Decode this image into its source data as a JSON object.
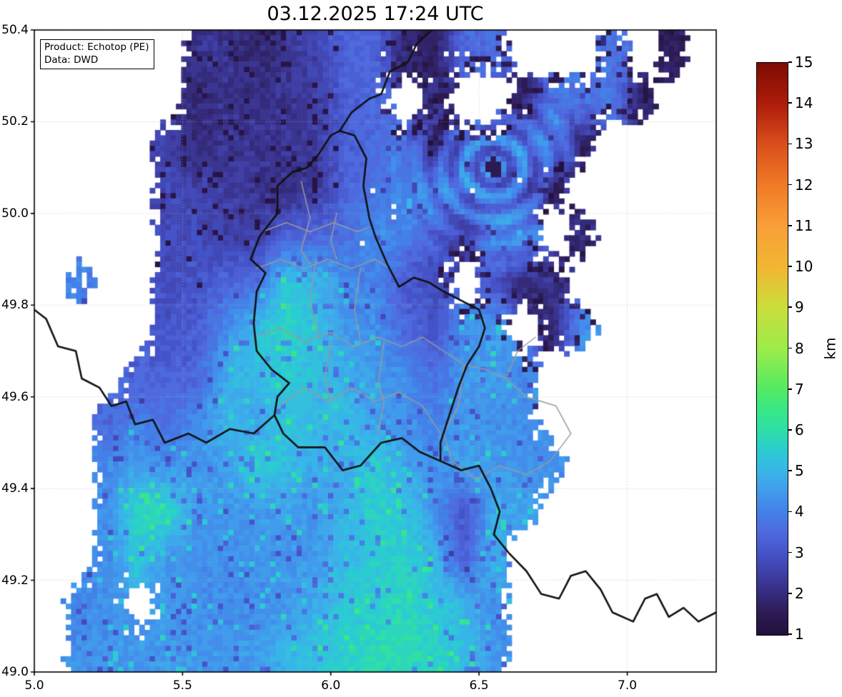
{
  "title": "03.12.2025 17:24 UTC",
  "annotation": {
    "line1": "Product: Echotop (PE)",
    "line2": "Data: DWD"
  },
  "axes": {
    "x_ticks": [
      {
        "v": 5.0,
        "label": "5.0"
      },
      {
        "v": 5.5,
        "label": "5.5"
      },
      {
        "v": 6.0,
        "label": "6.0"
      },
      {
        "v": 6.5,
        "label": "6.5"
      },
      {
        "v": 7.0,
        "label": "7.0"
      }
    ],
    "y_ticks": [
      {
        "v": 49.0,
        "label": "49.0"
      },
      {
        "v": 49.2,
        "label": "49.2"
      },
      {
        "v": 49.4,
        "label": "49.4"
      },
      {
        "v": 49.6,
        "label": "49.6"
      },
      {
        "v": 49.8,
        "label": "49.8"
      },
      {
        "v": 50.0,
        "label": "50.0"
      },
      {
        "v": 50.2,
        "label": "50.2"
      },
      {
        "v": 50.4,
        "label": "50.4"
      }
    ],
    "x_range": [
      5.0,
      7.3
    ],
    "y_range": [
      49.0,
      50.4
    ]
  },
  "gridlines": {
    "x": [
      5.0,
      5.5,
      6.0,
      6.5,
      7.0
    ],
    "y": [
      49.0,
      49.2,
      49.4,
      49.6,
      49.8,
      50.0,
      50.2,
      50.4
    ],
    "color": "#c3c3c3"
  },
  "colorbar": {
    "label": "km",
    "min": 1,
    "max": 15,
    "ticks": [
      {
        "v": 1,
        "label": "1"
      },
      {
        "v": 2,
        "label": "2"
      },
      {
        "v": 3,
        "label": "3"
      },
      {
        "v": 4,
        "label": "4"
      },
      {
        "v": 5,
        "label": "5"
      },
      {
        "v": 6,
        "label": "6"
      },
      {
        "v": 7,
        "label": "7"
      },
      {
        "v": 8,
        "label": "8"
      },
      {
        "v": 9,
        "label": "9"
      },
      {
        "v": 10,
        "label": "10"
      },
      {
        "v": 11,
        "label": "11"
      },
      {
        "v": 12,
        "label": "12"
      },
      {
        "v": 13,
        "label": "13"
      },
      {
        "v": 14,
        "label": "14"
      },
      {
        "v": 15,
        "label": "15"
      }
    ],
    "stops": [
      [
        1.0,
        "#22103d"
      ],
      [
        1.5,
        "#2c1a52"
      ],
      [
        2.0,
        "#342b7c"
      ],
      [
        2.5,
        "#3f3fa6"
      ],
      [
        3.0,
        "#4553c8"
      ],
      [
        3.5,
        "#4e6ade"
      ],
      [
        4.0,
        "#4380e8"
      ],
      [
        4.5,
        "#419bec"
      ],
      [
        5.0,
        "#38b5e8"
      ],
      [
        5.5,
        "#2bcbd2"
      ],
      [
        6.0,
        "#2edfa8"
      ],
      [
        6.5,
        "#38e787"
      ],
      [
        7.0,
        "#52ea63"
      ],
      [
        8.0,
        "#9cec4a"
      ],
      [
        9.0,
        "#cade3c"
      ],
      [
        10.0,
        "#f2b631"
      ],
      [
        11.0,
        "#f99f38"
      ],
      [
        12.0,
        "#f17a26"
      ],
      [
        13.0,
        "#da4f1c"
      ],
      [
        14.0,
        "#ad1c0a"
      ],
      [
        15.0,
        "#7e0b04"
      ]
    ]
  },
  "chart_data": {
    "type": "heatmap",
    "units": "km",
    "x_range": [
      5.0,
      7.3
    ],
    "y_range": [
      49.0,
      50.4
    ],
    "lon_step": 0.1,
    "lat_step": 0.1,
    "no_data_value": 0,
    "grid_rows_north_to_south": [
      [
        0,
        0,
        0,
        0,
        0,
        2.2,
        2.2,
        1.8,
        2.3,
        2.6,
        3.3,
        3.4,
        2.0,
        1.6,
        3.5,
        3.6,
        0,
        0,
        0,
        3.7,
        0,
        1.6,
        0
      ],
      [
        0,
        0,
        0,
        0,
        0,
        1.9,
        2.2,
        2.1,
        2.2,
        2.5,
        3.2,
        3.5,
        0,
        2.0,
        0,
        0,
        1.6,
        3.8,
        3.8,
        3.8,
        1.7,
        0,
        0
      ],
      [
        0,
        0,
        0,
        0,
        2.6,
        2.0,
        2.3,
        2.2,
        2.2,
        2.4,
        3.3,
        3.6,
        3.8,
        2.0,
        3.8,
        3.6,
        4.0,
        4.0,
        1.8,
        0,
        0,
        0,
        0
      ],
      [
        0,
        0,
        0,
        0,
        2.7,
        2.6,
        2.4,
        2.2,
        2.1,
        2.3,
        3.4,
        3.7,
        4.2,
        4.2,
        4.0,
        3.8,
        3.4,
        2.0,
        0,
        0,
        0,
        0,
        0
      ],
      [
        0,
        0,
        0,
        0,
        2.8,
        2.8,
        2.6,
        2.5,
        3.3,
        3.5,
        3.6,
        4.3,
        4.0,
        3.3,
        2.4,
        4.2,
        4.3,
        0,
        2.0,
        0,
        0,
        0,
        0
      ],
      [
        0,
        4.0,
        0,
        0,
        2.9,
        3.0,
        3.4,
        3.6,
        5.4,
        5.0,
        4.2,
        4.0,
        3.2,
        2.8,
        0,
        3.0,
        2.0,
        2.2,
        0,
        0,
        0,
        0,
        0
      ],
      [
        0,
        0,
        0,
        0,
        3.0,
        3.2,
        4.2,
        5.2,
        5.7,
        5.3,
        4.5,
        4.3,
        3.5,
        3.0,
        4.3,
        4.5,
        0,
        2.0,
        4.3,
        0,
        0,
        0,
        0
      ],
      [
        0,
        0,
        0,
        3.3,
        3.3,
        3.4,
        4.8,
        5.2,
        5.4,
        5.2,
        4.8,
        4.4,
        4.2,
        3.6,
        4.4,
        4.6,
        4.2,
        0,
        0,
        0,
        0,
        0,
        0
      ],
      [
        0,
        0,
        3.5,
        4.0,
        3.6,
        4.2,
        5.0,
        4.6,
        5.3,
        5.0,
        5.2,
        4.6,
        4.3,
        4.0,
        4.5,
        4.3,
        4.3,
        0,
        0,
        0,
        0,
        0,
        0
      ],
      [
        0,
        0,
        4.2,
        4.5,
        4.3,
        4.4,
        4.6,
        5.6,
        5.2,
        4.8,
        4.8,
        5.6,
        4.6,
        4.3,
        4.6,
        4.5,
        4.4,
        4.3,
        0,
        0,
        0,
        0,
        0
      ],
      [
        0,
        0,
        4.3,
        5.8,
        5.8,
        4.5,
        4.4,
        4.4,
        4.6,
        4.4,
        5.0,
        5.6,
        5.4,
        4.4,
        3.0,
        4.8,
        4.6,
        0,
        0,
        0,
        0,
        0,
        0
      ],
      [
        0,
        0,
        4.2,
        5.4,
        4.4,
        4.4,
        4.3,
        4.3,
        4.4,
        4.5,
        5.2,
        5.4,
        5.6,
        5.0,
        3.2,
        5.0,
        0,
        0,
        0,
        0,
        0,
        0,
        0
      ],
      [
        0,
        4.2,
        4.3,
        0,
        4.4,
        4.3,
        4.2,
        4.3,
        4.4,
        4.8,
        5.4,
        5.6,
        5.8,
        5.4,
        5.0,
        4.2,
        0,
        0,
        0,
        0,
        0,
        0,
        0
      ],
      [
        0,
        4.3,
        4.4,
        4.4,
        4.5,
        4.4,
        4.4,
        4.5,
        5.0,
        5.3,
        5.6,
        5.8,
        5.9,
        5.6,
        5.2,
        4.4,
        0,
        0,
        0,
        0,
        0,
        0,
        0
      ]
    ],
    "radar_artifact_vortex": {
      "lon": 6.55,
      "lat": 50.1,
      "radius": 0.26,
      "wavelength": 0.052,
      "amplitude": 1.0
    }
  },
  "map_layers": {
    "colors": {
      "country_border": "#111111",
      "district_border": "#9a9a9a"
    },
    "country_borders": [
      [
        [
          6.03,
          50.18
        ],
        [
          6.08,
          50.17
        ],
        [
          6.12,
          50.12
        ],
        [
          6.11,
          50.06
        ],
        [
          6.13,
          49.99
        ],
        [
          6.15,
          49.95
        ],
        [
          6.19,
          49.89
        ],
        [
          6.23,
          49.84
        ],
        [
          6.28,
          49.86
        ],
        [
          6.33,
          49.85
        ],
        [
          6.38,
          49.83
        ],
        [
          6.44,
          49.81
        ],
        [
          6.5,
          49.79
        ],
        [
          6.52,
          49.75
        ],
        [
          6.5,
          49.71
        ],
        [
          6.46,
          49.67
        ],
        [
          6.43,
          49.62
        ],
        [
          6.4,
          49.56
        ],
        [
          6.37,
          49.5
        ],
        [
          6.37,
          49.46
        ],
        [
          6.3,
          49.48
        ],
        [
          6.24,
          49.51
        ],
        [
          6.17,
          49.5
        ],
        [
          6.1,
          49.45
        ],
        [
          6.04,
          49.44
        ],
        [
          5.98,
          49.49
        ],
        [
          5.89,
          49.49
        ],
        [
          5.84,
          49.52
        ],
        [
          5.81,
          49.56
        ],
        [
          5.82,
          49.6
        ],
        [
          5.86,
          49.63
        ],
        [
          5.8,
          49.66
        ],
        [
          5.75,
          49.7
        ],
        [
          5.74,
          49.76
        ],
        [
          5.75,
          49.83
        ],
        [
          5.78,
          49.87
        ],
        [
          5.73,
          49.9
        ],
        [
          5.76,
          49.95
        ],
        [
          5.82,
          50.0
        ],
        [
          5.82,
          50.06
        ],
        [
          5.87,
          50.09
        ],
        [
          5.92,
          50.1
        ],
        [
          5.96,
          50.13
        ],
        [
          6.0,
          50.17
        ],
        [
          6.03,
          50.18
        ]
      ],
      [
        [
          6.03,
          50.18
        ],
        [
          6.07,
          50.22
        ],
        [
          6.13,
          50.25
        ],
        [
          6.17,
          50.26
        ],
        [
          6.2,
          50.31
        ],
        [
          6.26,
          50.33
        ],
        [
          6.29,
          50.37
        ],
        [
          6.34,
          50.4
        ]
      ],
      [
        [
          5.0,
          49.79
        ],
        [
          5.04,
          49.77
        ],
        [
          5.08,
          49.71
        ],
        [
          5.14,
          49.7
        ],
        [
          5.16,
          49.64
        ],
        [
          5.22,
          49.62
        ],
        [
          5.26,
          49.58
        ],
        [
          5.31,
          49.59
        ],
        [
          5.34,
          49.54
        ],
        [
          5.4,
          49.55
        ],
        [
          5.44,
          49.5
        ],
        [
          5.52,
          49.52
        ],
        [
          5.58,
          49.5
        ],
        [
          5.66,
          49.53
        ],
        [
          5.74,
          49.52
        ],
        [
          5.81,
          49.56
        ]
      ],
      [
        [
          6.37,
          49.46
        ],
        [
          6.44,
          49.44
        ],
        [
          6.5,
          49.45
        ],
        [
          6.54,
          49.4
        ],
        [
          6.57,
          49.35
        ],
        [
          6.55,
          49.3
        ],
        [
          6.6,
          49.26
        ],
        [
          6.66,
          49.22
        ],
        [
          6.71,
          49.17
        ],
        [
          6.77,
          49.16
        ],
        [
          6.81,
          49.21
        ],
        [
          6.86,
          49.22
        ],
        [
          6.91,
          49.18
        ],
        [
          6.95,
          49.13
        ],
        [
          7.02,
          49.11
        ],
        [
          7.06,
          49.16
        ],
        [
          7.1,
          49.17
        ],
        [
          7.14,
          49.12
        ],
        [
          7.19,
          49.14
        ],
        [
          7.24,
          49.11
        ],
        [
          7.3,
          49.13
        ]
      ]
    ],
    "district_borders": [
      [
        [
          5.77,
          49.96
        ],
        [
          5.85,
          49.98
        ],
        [
          5.93,
          49.96
        ],
        [
          6.01,
          49.98
        ],
        [
          6.09,
          49.96
        ],
        [
          6.13,
          49.97
        ]
      ],
      [
        [
          5.9,
          50.07
        ],
        [
          5.93,
          49.99
        ],
        [
          5.9,
          49.92
        ],
        [
          5.93,
          49.89
        ]
      ],
      [
        [
          6.02,
          50.0
        ],
        [
          6.0,
          49.94
        ],
        [
          6.02,
          49.9
        ]
      ],
      [
        [
          5.75,
          49.88
        ],
        [
          5.83,
          49.9
        ],
        [
          5.91,
          49.88
        ],
        [
          5.99,
          49.9
        ],
        [
          6.07,
          49.88
        ],
        [
          6.15,
          49.9
        ],
        [
          6.2,
          49.88
        ]
      ],
      [
        [
          5.74,
          49.73
        ],
        [
          5.83,
          49.75
        ],
        [
          5.91,
          49.72
        ],
        [
          6.0,
          49.74
        ],
        [
          6.08,
          49.71
        ],
        [
          6.16,
          49.73
        ],
        [
          6.24,
          49.71
        ],
        [
          6.31,
          49.73
        ],
        [
          6.38,
          49.7
        ],
        [
          6.45,
          49.67
        ]
      ],
      [
        [
          5.83,
          49.58
        ],
        [
          5.91,
          49.62
        ],
        [
          5.99,
          49.59
        ],
        [
          6.07,
          49.62
        ],
        [
          6.15,
          49.59
        ],
        [
          6.23,
          49.61
        ],
        [
          6.31,
          49.58
        ],
        [
          6.37,
          49.52
        ]
      ],
      [
        [
          5.95,
          49.9
        ],
        [
          5.93,
          49.81
        ],
        [
          5.96,
          49.73
        ]
      ],
      [
        [
          6.1,
          49.88
        ],
        [
          6.08,
          49.79
        ],
        [
          6.1,
          49.72
        ]
      ],
      [
        [
          6.0,
          49.72
        ],
        [
          5.98,
          49.64
        ],
        [
          6.0,
          49.59
        ]
      ],
      [
        [
          6.18,
          49.72
        ],
        [
          6.16,
          49.63
        ],
        [
          6.18,
          49.59
        ],
        [
          6.16,
          49.52
        ]
      ],
      [
        [
          6.45,
          49.67
        ],
        [
          6.52,
          49.66
        ],
        [
          6.59,
          49.64
        ],
        [
          6.66,
          49.6
        ],
        [
          6.76,
          49.58
        ],
        [
          6.81,
          49.52
        ],
        [
          6.74,
          49.46
        ],
        [
          6.66,
          49.43
        ],
        [
          6.57,
          49.45
        ],
        [
          6.49,
          49.42
        ],
        [
          6.41,
          49.46
        ],
        [
          6.38,
          49.52
        ],
        [
          6.43,
          49.58
        ],
        [
          6.45,
          49.67
        ]
      ],
      [
        [
          6.59,
          49.64
        ],
        [
          6.63,
          49.7
        ],
        [
          6.69,
          49.73
        ]
      ]
    ]
  }
}
